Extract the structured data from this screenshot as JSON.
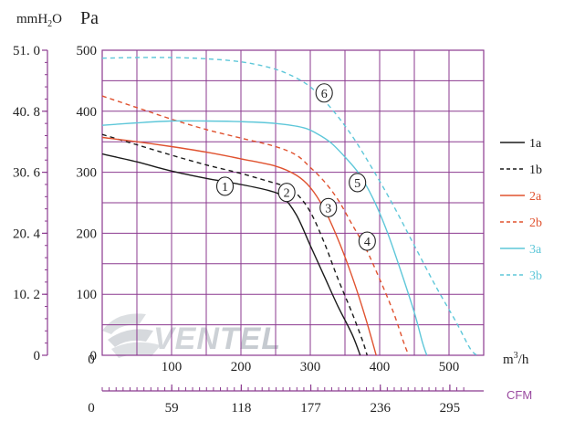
{
  "chart_data": {
    "type": "line",
    "title": "",
    "y_unit_primary": "Pa",
    "y_unit_secondary": "mmH₂O",
    "x_unit_primary": "m³/h",
    "x_unit_secondary": "CFM",
    "xlim": [
      0,
      550
    ],
    "ylim": [
      0,
      500
    ],
    "grid": true,
    "legend_position": "right",
    "x_ticks": [
      "100",
      "200",
      "300",
      "400",
      "500"
    ],
    "x_tick_values": [
      100,
      200,
      300,
      400,
      500
    ],
    "y_ticks": [
      "0",
      "100",
      "200",
      "300",
      "400",
      "500"
    ],
    "y_tick_values": [
      0,
      100,
      200,
      300,
      400,
      500
    ],
    "x0_label": "0",
    "y_secondary_ticks": [
      "0",
      "10. 2",
      "20. 4",
      "30. 6",
      "40. 8",
      "51. 0"
    ],
    "x_secondary_ticks": [
      "0",
      "59",
      "118",
      "177",
      "236",
      "295"
    ],
    "watermark": "VENTEL",
    "series": [
      {
        "name": "1a",
        "color": "#1a1a1a",
        "dash": false,
        "points": [
          [
            0,
            330
          ],
          [
            50,
            317
          ],
          [
            100,
            302
          ],
          [
            150,
            290
          ],
          [
            200,
            280
          ],
          [
            240,
            270
          ],
          [
            260,
            260
          ],
          [
            280,
            230
          ],
          [
            300,
            180
          ],
          [
            320,
            130
          ],
          [
            340,
            80
          ],
          [
            360,
            35
          ],
          [
            372,
            0
          ]
        ]
      },
      {
        "name": "1b",
        "color": "#1a1a1a",
        "dash": true,
        "points": [
          [
            0,
            362
          ],
          [
            50,
            345
          ],
          [
            100,
            328
          ],
          [
            150,
            312
          ],
          [
            200,
            298
          ],
          [
            240,
            285
          ],
          [
            260,
            278
          ],
          [
            280,
            265
          ],
          [
            300,
            235
          ],
          [
            320,
            185
          ],
          [
            340,
            125
          ],
          [
            360,
            70
          ],
          [
            375,
            25
          ],
          [
            382,
            0
          ]
        ]
      },
      {
        "name": "2a",
        "color": "#e0522f",
        "dash": false,
        "points": [
          [
            0,
            357
          ],
          [
            50,
            350
          ],
          [
            100,
            342
          ],
          [
            150,
            333
          ],
          [
            200,
            322
          ],
          [
            250,
            310
          ],
          [
            280,
            295
          ],
          [
            300,
            275
          ],
          [
            320,
            240
          ],
          [
            340,
            190
          ],
          [
            360,
            130
          ],
          [
            380,
            60
          ],
          [
            395,
            0
          ]
        ]
      },
      {
        "name": "2b",
        "color": "#e0522f",
        "dash": true,
        "points": [
          [
            0,
            425
          ],
          [
            50,
            406
          ],
          [
            100,
            387
          ],
          [
            150,
            370
          ],
          [
            200,
            356
          ],
          [
            250,
            342
          ],
          [
            280,
            328
          ],
          [
            300,
            308
          ],
          [
            320,
            285
          ],
          [
            340,
            255
          ],
          [
            360,
            215
          ],
          [
            380,
            175
          ],
          [
            400,
            125
          ],
          [
            420,
            70
          ],
          [
            435,
            20
          ],
          [
            442,
            0
          ]
        ]
      },
      {
        "name": "3a",
        "color": "#5ec7d9",
        "dash": false,
        "points": [
          [
            0,
            377
          ],
          [
            50,
            381
          ],
          [
            100,
            384
          ],
          [
            150,
            384
          ],
          [
            200,
            383
          ],
          [
            250,
            380
          ],
          [
            290,
            373
          ],
          [
            310,
            363
          ],
          [
            330,
            348
          ],
          [
            350,
            325
          ],
          [
            370,
            298
          ],
          [
            390,
            258
          ],
          [
            410,
            205
          ],
          [
            430,
            140
          ],
          [
            450,
            70
          ],
          [
            462,
            20
          ],
          [
            468,
            0
          ]
        ]
      },
      {
        "name": "3b",
        "color": "#5ec7d9",
        "dash": true,
        "points": [
          [
            0,
            487
          ],
          [
            50,
            488
          ],
          [
            100,
            488
          ],
          [
            150,
            486
          ],
          [
            200,
            481
          ],
          [
            240,
            472
          ],
          [
            270,
            460
          ],
          [
            300,
            440
          ],
          [
            330,
            405
          ],
          [
            360,
            360
          ],
          [
            390,
            305
          ],
          [
            420,
            245
          ],
          [
            450,
            180
          ],
          [
            480,
            115
          ],
          [
            510,
            55
          ],
          [
            530,
            12
          ],
          [
            540,
            0
          ]
        ]
      }
    ],
    "curve_labels": [
      {
        "text": "1",
        "x": 177,
        "y": 277
      },
      {
        "text": "2",
        "x": 266,
        "y": 267
      },
      {
        "text": "3",
        "x": 326,
        "y": 242
      },
      {
        "text": "4",
        "x": 382,
        "y": 187
      },
      {
        "text": "5",
        "x": 368,
        "y": 283
      },
      {
        "text": "6",
        "x": 320,
        "y": 430
      }
    ]
  }
}
